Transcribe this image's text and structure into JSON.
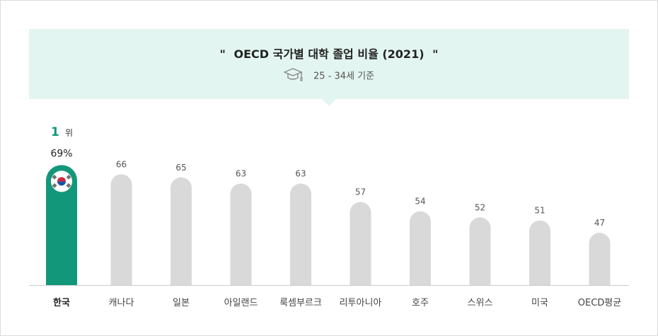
{
  "header": {
    "title": "OECD 국가별 대학 졸업 비율 (2021)",
    "quote_open": "\"",
    "quote_close": "\"",
    "subtitle": "25 - 34세 기준",
    "icon": "graduation-cap-icon",
    "background": "#e3f5f0"
  },
  "highlight": {
    "rank_number": "1",
    "rank_unit": "위",
    "value_label": "69%",
    "flag_icon": "korea-flag-icon",
    "color": "#13977a"
  },
  "colors": {
    "bar": "#d9d9d9",
    "highlight_bar": "#13977a",
    "baseline": "#cccccc"
  },
  "chart_data": {
    "type": "bar",
    "title": "OECD 국가별 대학 졸업 비율 (2021)",
    "subtitle": "25 - 34세 기준",
    "categories": [
      "한국",
      "캐나다",
      "일본",
      "아일랜드",
      "룩셈부르크",
      "리투아니아",
      "호주",
      "스위스",
      "미국",
      "OECD평균"
    ],
    "values": [
      69,
      66,
      65,
      63,
      63,
      57,
      54,
      52,
      51,
      47
    ],
    "labels": [
      "69%",
      "66",
      "65",
      "63",
      "63",
      "57",
      "54",
      "52",
      "51",
      "47"
    ],
    "highlight_index": 0,
    "ylim": [
      30,
      70
    ],
    "grid": false
  }
}
